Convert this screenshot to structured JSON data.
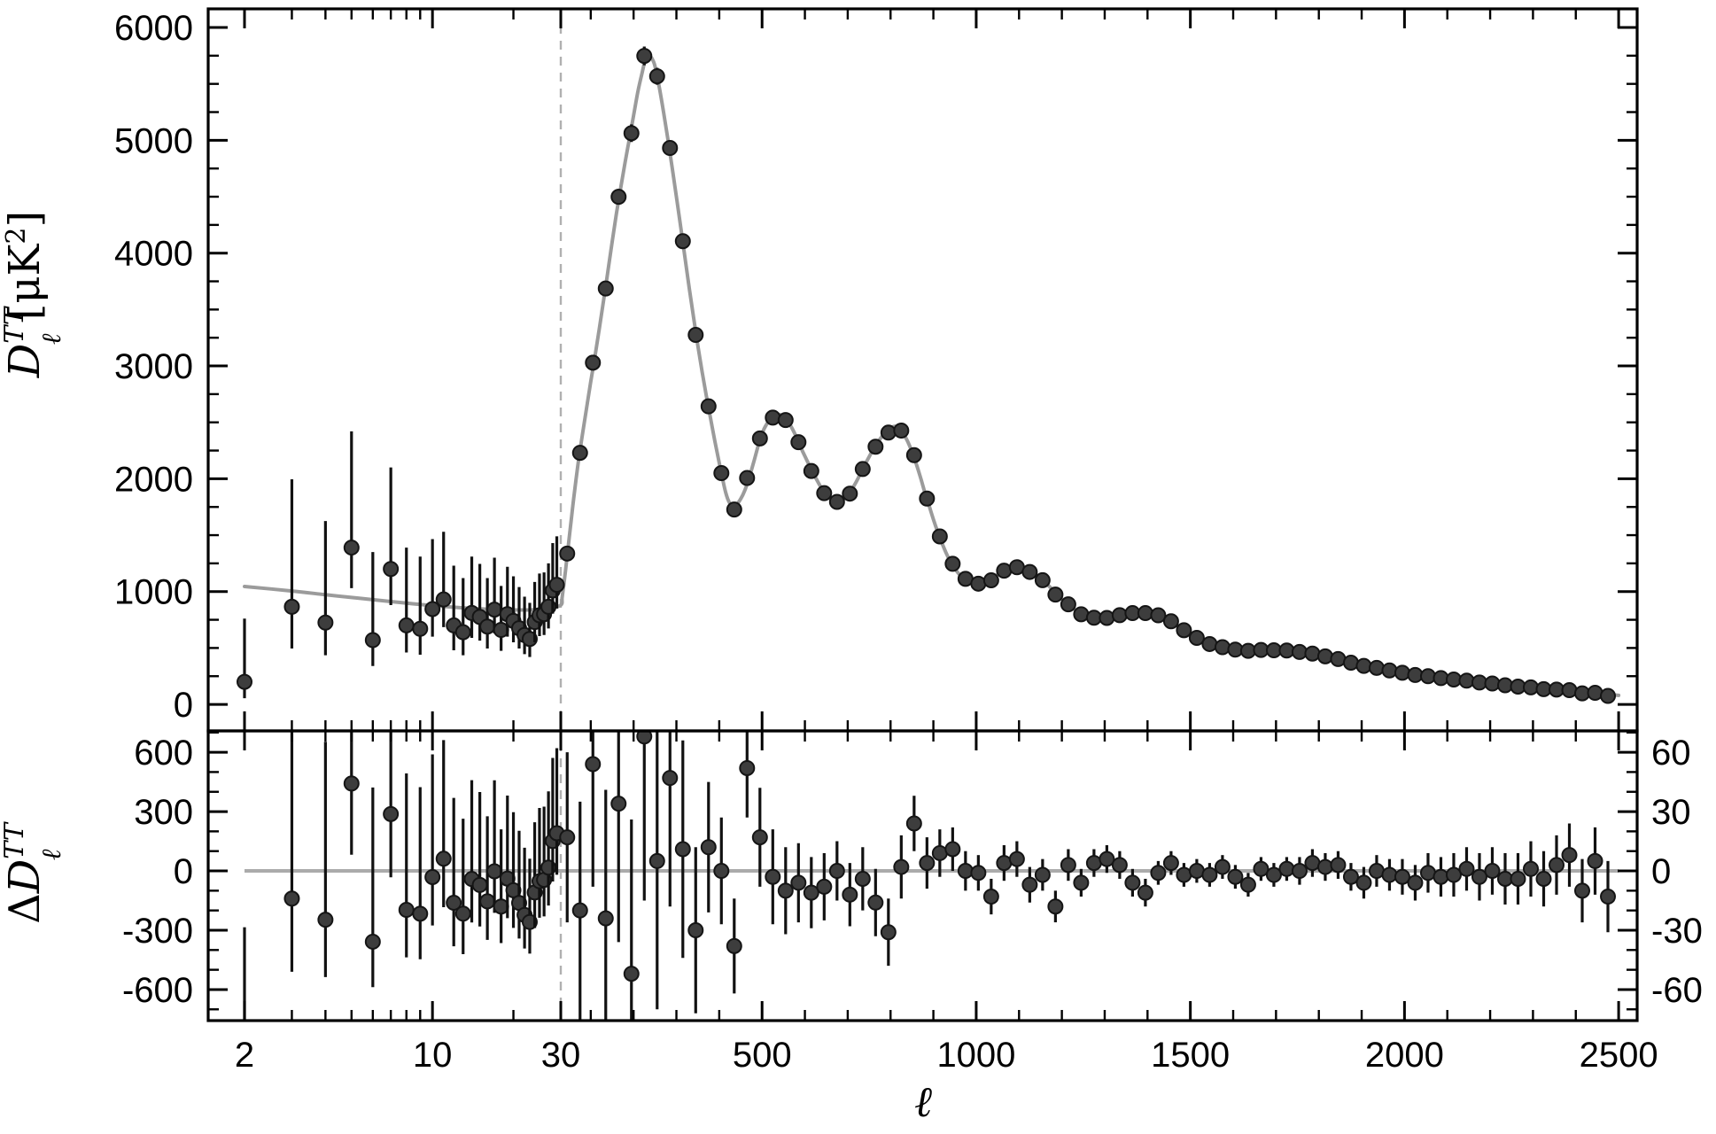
{
  "meta": {
    "description": "CMB temperature angular power spectrum with best-fit model and residuals (Planck-style figure)"
  },
  "colors": {
    "background": "#ffffff",
    "axis": "#000000",
    "model_curve": "#9b9b9b",
    "zero_line": "#ababab",
    "dashed_line": "#b0b0b0",
    "point_fill": "#3d3d3d",
    "point_stroke": "#151515",
    "error_bar": "#111111"
  },
  "chart_data": {
    "type": "scatter",
    "title": "",
    "xlabel": "ℓ",
    "ylabel_top": {
      "base": "D",
      "sup": "TT",
      "sub": "ℓ",
      "unit_open": " [μK",
      "unit_exp": "2",
      "unit_close": "]"
    },
    "ylabel_bottom": {
      "prefix": "Δ",
      "base": "D",
      "sup": "TT",
      "sub": "ℓ"
    },
    "x_axis": {
      "scale": "log below split, linear above split",
      "log_start": 2,
      "split": 30,
      "end": 2500,
      "major_ticks": [
        2,
        10,
        30,
        500,
        1000,
        1500,
        2000,
        2500
      ],
      "major_tick_labels": [
        "2",
        "10",
        "30",
        "500",
        "1000",
        "1500",
        "2000",
        "2500"
      ],
      "minor_ticks_log": [
        3,
        4,
        5,
        6,
        7,
        8,
        9,
        20
      ],
      "minor_tick_step_linear": 100,
      "label": "ℓ"
    },
    "y_axis_top": {
      "range": [
        -235,
        6165
      ],
      "major_ticks": [
        0,
        1000,
        2000,
        3000,
        4000,
        5000,
        6000
      ],
      "major_tick_labels": [
        "0",
        "1000",
        "2000",
        "3000",
        "4000",
        "5000",
        "6000"
      ],
      "minor_tick_step": 250
    },
    "y_axis_bottom_left": {
      "range": [
        -757,
        708
      ],
      "major_ticks": [
        -600,
        -300,
        0,
        300,
        600
      ],
      "major_tick_labels": [
        "-600",
        "-300",
        "0",
        "300",
        "600"
      ],
      "minor_tick_step": 100
    },
    "y_axis_bottom_right": {
      "range": [
        -75.7,
        70.8
      ],
      "major_ticks": [
        -60,
        -30,
        0,
        30,
        60
      ],
      "major_tick_labels": [
        "-60",
        "-30",
        "0",
        "30",
        "60"
      ],
      "minor_tick_step": 10,
      "note": "right scale applies to binned points at ell >= 30; equals left scale divided by 10"
    },
    "vertical_dashed_line_at": 30,
    "model_curve": [
      [
        2,
        1045
      ],
      [
        3,
        1005
      ],
      [
        4,
        972
      ],
      [
        5,
        948
      ],
      [
        6,
        928
      ],
      [
        8,
        897
      ],
      [
        10,
        876
      ],
      [
        12,
        861
      ],
      [
        15,
        846
      ],
      [
        18,
        840
      ],
      [
        21,
        837
      ],
      [
        24,
        839
      ],
      [
        27,
        848
      ],
      [
        30,
        880
      ],
      [
        33,
        945
      ],
      [
        36,
        1030
      ],
      [
        40,
        1150
      ],
      [
        45,
        1320
      ],
      [
        50,
        1490
      ],
      [
        55,
        1655
      ],
      [
        60,
        1820
      ],
      [
        70,
        2120
      ],
      [
        80,
        2380
      ],
      [
        90,
        2620
      ],
      [
        100,
        2860
      ],
      [
        110,
        3090
      ],
      [
        120,
        3330
      ],
      [
        130,
        3580
      ],
      [
        140,
        3840
      ],
      [
        150,
        4100
      ],
      [
        160,
        4350
      ],
      [
        170,
        4580
      ],
      [
        180,
        4800
      ],
      [
        190,
        5010
      ],
      [
        200,
        5220
      ],
      [
        210,
        5430
      ],
      [
        220,
        5600
      ],
      [
        225,
        5680
      ],
      [
        230,
        5720
      ],
      [
        235,
        5745
      ],
      [
        240,
        5740
      ],
      [
        245,
        5710
      ],
      [
        250,
        5655
      ],
      [
        260,
        5470
      ],
      [
        270,
        5250
      ],
      [
        280,
        5010
      ],
      [
        290,
        4760
      ],
      [
        300,
        4500
      ],
      [
        310,
        4230
      ],
      [
        320,
        3960
      ],
      [
        330,
        3690
      ],
      [
        340,
        3430
      ],
      [
        350,
        3180
      ],
      [
        360,
        2950
      ],
      [
        370,
        2730
      ],
      [
        380,
        2530
      ],
      [
        390,
        2330
      ],
      [
        400,
        2140
      ],
      [
        410,
        1960
      ],
      [
        415,
        1880
      ],
      [
        420,
        1820
      ],
      [
        425,
        1780
      ],
      [
        430,
        1760
      ],
      [
        440,
        1770
      ],
      [
        450,
        1820
      ],
      [
        460,
        1900
      ],
      [
        470,
        2010
      ],
      [
        480,
        2140
      ],
      [
        490,
        2280
      ],
      [
        500,
        2400
      ],
      [
        510,
        2480
      ],
      [
        520,
        2530
      ],
      [
        530,
        2560
      ],
      [
        537,
        2570
      ],
      [
        545,
        2565
      ],
      [
        555,
        2530
      ],
      [
        565,
        2480
      ],
      [
        575,
        2410
      ],
      [
        585,
        2330
      ],
      [
        595,
        2240
      ],
      [
        605,
        2160
      ],
      [
        615,
        2080
      ],
      [
        625,
        2010
      ],
      [
        635,
        1940
      ],
      [
        645,
        1880
      ],
      [
        655,
        1835
      ],
      [
        665,
        1805
      ],
      [
        675,
        1795
      ],
      [
        685,
        1805
      ],
      [
        695,
        1835
      ],
      [
        705,
        1880
      ],
      [
        715,
        1940
      ],
      [
        725,
        2010
      ],
      [
        735,
        2090
      ],
      [
        745,
        2160
      ],
      [
        755,
        2230
      ],
      [
        765,
        2300
      ],
      [
        775,
        2350
      ],
      [
        785,
        2400
      ],
      [
        795,
        2440
      ],
      [
        805,
        2460
      ],
      [
        812,
        2465
      ],
      [
        820,
        2450
      ],
      [
        830,
        2400
      ],
      [
        840,
        2330
      ],
      [
        850,
        2240
      ],
      [
        860,
        2130
      ],
      [
        870,
        2010
      ],
      [
        880,
        1880
      ],
      [
        890,
        1760
      ],
      [
        900,
        1640
      ],
      [
        910,
        1530
      ],
      [
        920,
        1430
      ],
      [
        930,
        1340
      ],
      [
        940,
        1265
      ],
      [
        950,
        1205
      ],
      [
        960,
        1155
      ],
      [
        970,
        1125
      ],
      [
        980,
        1100
      ],
      [
        990,
        1080
      ],
      [
        1000,
        1070
      ],
      [
        1010,
        1072
      ],
      [
        1020,
        1082
      ],
      [
        1030,
        1100
      ],
      [
        1040,
        1125
      ],
      [
        1050,
        1150
      ],
      [
        1060,
        1172
      ],
      [
        1070,
        1190
      ],
      [
        1080,
        1202
      ],
      [
        1090,
        1210
      ],
      [
        1100,
        1210
      ],
      [
        1110,
        1202
      ],
      [
        1120,
        1190
      ],
      [
        1130,
        1172
      ],
      [
        1140,
        1150
      ],
      [
        1150,
        1120
      ],
      [
        1160,
        1085
      ],
      [
        1170,
        1048
      ],
      [
        1180,
        1010
      ],
      [
        1190,
        972
      ],
      [
        1200,
        935
      ],
      [
        1210,
        900
      ],
      [
        1220,
        868
      ],
      [
        1230,
        840
      ],
      [
        1240,
        815
      ],
      [
        1250,
        795
      ],
      [
        1260,
        780
      ],
      [
        1270,
        768
      ],
      [
        1280,
        760
      ],
      [
        1290,
        757
      ],
      [
        1300,
        758
      ],
      [
        1310,
        763
      ],
      [
        1320,
        772
      ],
      [
        1330,
        782
      ],
      [
        1340,
        793
      ],
      [
        1350,
        803
      ],
      [
        1360,
        812
      ],
      [
        1370,
        818
      ],
      [
        1380,
        822
      ],
      [
        1390,
        822
      ],
      [
        1400,
        818
      ],
      [
        1410,
        810
      ],
      [
        1420,
        798
      ],
      [
        1430,
        783
      ],
      [
        1440,
        765
      ],
      [
        1450,
        744
      ],
      [
        1460,
        721
      ],
      [
        1470,
        697
      ],
      [
        1480,
        672
      ],
      [
        1490,
        647
      ],
      [
        1500,
        622
      ],
      [
        1510,
        600
      ],
      [
        1520,
        579
      ],
      [
        1530,
        560
      ],
      [
        1540,
        544
      ],
      [
        1550,
        530
      ],
      [
        1560,
        518
      ],
      [
        1570,
        509
      ],
      [
        1580,
        501
      ],
      [
        1590,
        495
      ],
      [
        1600,
        490
      ],
      [
        1620,
        484
      ],
      [
        1640,
        481
      ],
      [
        1660,
        481
      ],
      [
        1680,
        482
      ],
      [
        1700,
        481
      ],
      [
        1720,
        478
      ],
      [
        1740,
        472
      ],
      [
        1760,
        462
      ],
      [
        1780,
        450
      ],
      [
        1800,
        436
      ],
      [
        1820,
        420
      ],
      [
        1840,
        403
      ],
      [
        1860,
        386
      ],
      [
        1880,
        368
      ],
      [
        1900,
        351
      ],
      [
        1920,
        335
      ],
      [
        1940,
        320
      ],
      [
        1960,
        306
      ],
      [
        1980,
        293
      ],
      [
        2000,
        280
      ],
      [
        2050,
        253
      ],
      [
        2100,
        229
      ],
      [
        2150,
        207
      ],
      [
        2200,
        187
      ],
      [
        2250,
        168
      ],
      [
        2300,
        148
      ],
      [
        2350,
        130
      ],
      [
        2400,
        113
      ],
      [
        2450,
        96
      ],
      [
        2500,
        80
      ]
    ],
    "low_ell_points_format": [
      "ell",
      "D_uK2",
      "err_up",
      "err_down"
    ],
    "low_ell_points": [
      [
        2,
        200,
        560,
        145
      ],
      [
        3,
        865,
        1130,
        370
      ],
      [
        4,
        725,
        900,
        290
      ],
      [
        5,
        1390,
        1030,
        360
      ],
      [
        6,
        570,
        780,
        230
      ],
      [
        7,
        1200,
        900,
        320
      ],
      [
        8,
        700,
        690,
        240
      ],
      [
        9,
        670,
        640,
        230
      ],
      [
        10,
        845,
        620,
        245
      ],
      [
        11,
        930,
        600,
        245
      ],
      [
        12,
        700,
        530,
        220
      ],
      [
        13,
        640,
        480,
        205
      ],
      [
        14,
        810,
        500,
        220
      ],
      [
        15,
        775,
        470,
        210
      ],
      [
        16,
        690,
        430,
        195
      ],
      [
        17,
        840,
        460,
        210
      ],
      [
        18,
        660,
        390,
        185
      ],
      [
        19,
        800,
        420,
        200
      ],
      [
        20,
        740,
        395,
        190
      ],
      [
        21,
        675,
        365,
        180
      ],
      [
        22,
        615,
        340,
        170
      ],
      [
        23,
        580,
        320,
        160
      ],
      [
        24,
        730,
        355,
        180
      ],
      [
        25,
        790,
        370,
        185
      ],
      [
        26,
        800,
        370,
        185
      ],
      [
        27,
        865,
        385,
        192
      ],
      [
        28,
        1010,
        420,
        205
      ],
      [
        29,
        1060,
        430,
        210
      ]
    ],
    "binned_points_format": [
      "ell",
      "residual_uK2",
      "sigma_uK2"
    ],
    "binned_points_note": "D value in top panel = model_curve(ell) + residual; residuals/sigmas drawn on right-hand scale of bottom panel",
    "binned_points": [
      [
        45,
        17,
        43
      ],
      [
        75,
        -20,
        55
      ],
      [
        105,
        54,
        62
      ],
      [
        135,
        -24,
        65
      ],
      [
        165,
        34,
        70
      ],
      [
        195,
        -52,
        78
      ],
      [
        225,
        68,
        83
      ],
      [
        255,
        5,
        75
      ],
      [
        285,
        47,
        65
      ],
      [
        315,
        11,
        55
      ],
      [
        345,
        -30,
        42
      ],
      [
        375,
        12,
        33
      ],
      [
        405,
        0,
        27
      ],
      [
        435,
        -38,
        24
      ],
      [
        465,
        52,
        25
      ],
      [
        495,
        17,
        25
      ],
      [
        525,
        -3,
        24
      ],
      [
        555,
        -10,
        22
      ],
      [
        585,
        -6,
        20
      ],
      [
        615,
        -11,
        18
      ],
      [
        645,
        -8,
        17
      ],
      [
        675,
        0,
        15
      ],
      [
        705,
        -12,
        16
      ],
      [
        735,
        -4,
        16
      ],
      [
        765,
        -16,
        17
      ],
      [
        795,
        -31,
        17
      ],
      [
        825,
        2,
        16
      ],
      [
        855,
        24,
        14
      ],
      [
        885,
        4,
        13
      ],
      [
        915,
        9,
        12
      ],
      [
        945,
        11,
        11
      ],
      [
        975,
        0,
        10
      ],
      [
        1005,
        -1,
        9
      ],
      [
        1035,
        -13,
        9
      ],
      [
        1065,
        4,
        9
      ],
      [
        1095,
        6,
        9
      ],
      [
        1125,
        -7,
        9
      ],
      [
        1155,
        -2,
        8
      ],
      [
        1185,
        -18,
        8
      ],
      [
        1215,
        3,
        8
      ],
      [
        1245,
        -6,
        7
      ],
      [
        1275,
        4,
        7
      ],
      [
        1305,
        6,
        7
      ],
      [
        1335,
        3,
        7
      ],
      [
        1365,
        -6,
        7
      ],
      [
        1395,
        -11,
        7
      ],
      [
        1425,
        -1,
        6
      ],
      [
        1455,
        4,
        6
      ],
      [
        1485,
        -2,
        6
      ],
      [
        1515,
        0,
        6
      ],
      [
        1545,
        -2,
        6
      ],
      [
        1575,
        2,
        6
      ],
      [
        1605,
        -3,
        6
      ],
      [
        1635,
        -7,
        6
      ],
      [
        1665,
        1,
        6
      ],
      [
        1695,
        -2,
        6
      ],
      [
        1725,
        1,
        6
      ],
      [
        1755,
        0,
        7
      ],
      [
        1785,
        4,
        7
      ],
      [
        1815,
        2,
        7
      ],
      [
        1845,
        3,
        7
      ],
      [
        1875,
        -3,
        7
      ],
      [
        1905,
        -6,
        8
      ],
      [
        1935,
        0,
        8
      ],
      [
        1965,
        -2,
        8
      ],
      [
        1995,
        -3,
        9
      ],
      [
        2025,
        -6,
        9
      ],
      [
        2055,
        -1,
        10
      ],
      [
        2085,
        -3,
        10
      ],
      [
        2115,
        -2,
        11
      ],
      [
        2145,
        1,
        11
      ],
      [
        2175,
        -3,
        12
      ],
      [
        2205,
        0,
        12
      ],
      [
        2235,
        -4,
        13
      ],
      [
        2265,
        -4,
        13
      ],
      [
        2295,
        1,
        14
      ],
      [
        2325,
        -4,
        14
      ],
      [
        2355,
        3,
        15
      ],
      [
        2385,
        8,
        16
      ],
      [
        2415,
        -10,
        16
      ],
      [
        2445,
        5,
        17
      ],
      [
        2475,
        -13,
        18
      ]
    ]
  }
}
